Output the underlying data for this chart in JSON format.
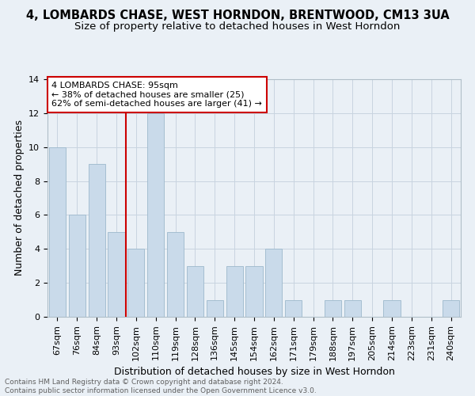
{
  "title": "4, LOMBARDS CHASE, WEST HORNDON, BRENTWOOD, CM13 3UA",
  "subtitle": "Size of property relative to detached houses in West Horndon",
  "xlabel": "Distribution of detached houses by size in West Horndon",
  "ylabel": "Number of detached properties",
  "footnote1": "Contains HM Land Registry data © Crown copyright and database right 2024.",
  "footnote2": "Contains public sector information licensed under the Open Government Licence v3.0.",
  "categories": [
    "67sqm",
    "76sqm",
    "84sqm",
    "93sqm",
    "102sqm",
    "110sqm",
    "119sqm",
    "128sqm",
    "136sqm",
    "145sqm",
    "154sqm",
    "162sqm",
    "171sqm",
    "179sqm",
    "188sqm",
    "197sqm",
    "205sqm",
    "214sqm",
    "223sqm",
    "231sqm",
    "240sqm"
  ],
  "values": [
    10,
    6,
    9,
    5,
    4,
    12,
    5,
    3,
    1,
    3,
    3,
    4,
    1,
    0,
    1,
    1,
    0,
    1,
    0,
    0,
    1
  ],
  "bar_color": "#c9daea",
  "bar_edgecolor": "#9db8cc",
  "reference_line_index": 3,
  "reference_line_color": "#cc0000",
  "annotation_line1": "4 LOMBARDS CHASE: 95sqm",
  "annotation_line2": "← 38% of detached houses are smaller (25)",
  "annotation_line3": "62% of semi-detached houses are larger (41) →",
  "annotation_box_facecolor": "#ffffff",
  "annotation_box_edgecolor": "#cc0000",
  "ylim": [
    0,
    14
  ],
  "yticks": [
    0,
    2,
    4,
    6,
    8,
    10,
    12,
    14
  ],
  "grid_color": "#c8d4e0",
  "background_color": "#eaf0f6",
  "title_fontsize": 10.5,
  "subtitle_fontsize": 9.5,
  "ylabel_fontsize": 9,
  "xlabel_fontsize": 9,
  "tick_fontsize": 8,
  "annotation_fontsize": 8,
  "footnote_fontsize": 6.5,
  "footnote_color": "#606060"
}
